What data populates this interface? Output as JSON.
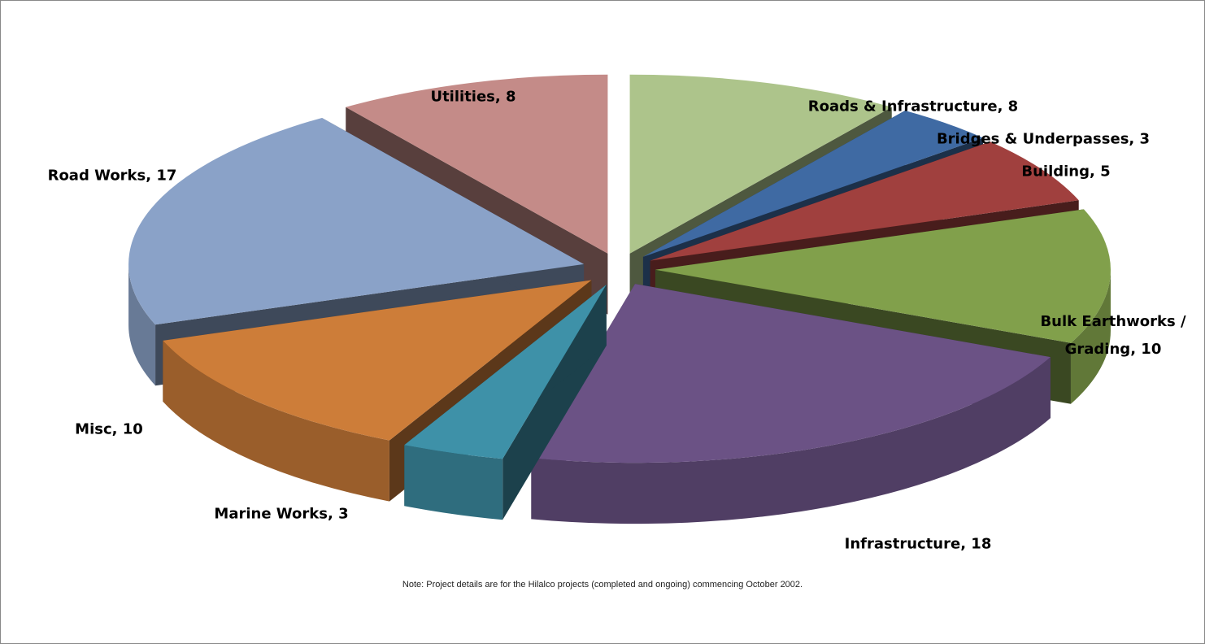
{
  "chart_data": {
    "type": "pie",
    "categories": [
      "Roads & Infrastructure",
      "Bridges & Underpasses",
      "Building",
      "Bulk Earthworks / Grading",
      "Infrastructure",
      "Marine Works",
      "Misc",
      "Road Works",
      "Utilities"
    ],
    "values": [
      8,
      3,
      5,
      10,
      18,
      3,
      10,
      17,
      8
    ],
    "colors": [
      "#adc48b",
      "#3f6aa3",
      "#a0403e",
      "#81a04b",
      "#6b5285",
      "#3e91a8",
      "#cd7d39",
      "#8aa2c8",
      "#c48b88"
    ],
    "note": "Note: Project details are for the Hilalco projects (completed and ongoing) commencing October 2002."
  }
}
